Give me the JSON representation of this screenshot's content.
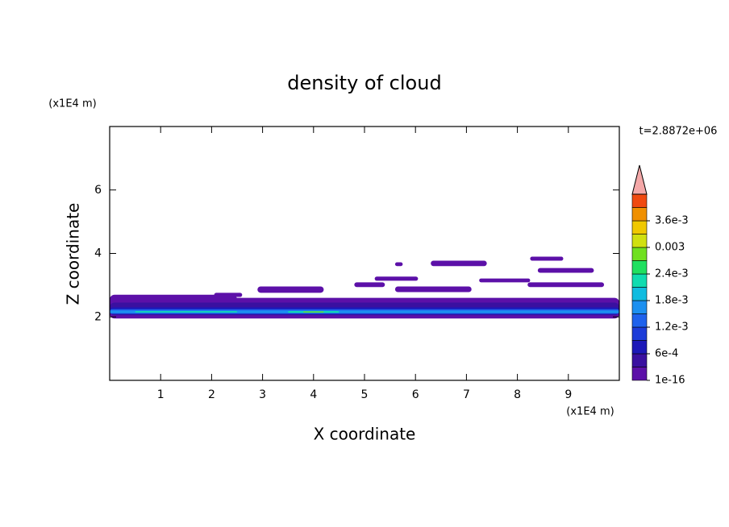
{
  "chart_data": {
    "type": "contour",
    "title": "density of cloud",
    "xlabel": "X coordinate",
    "ylabel": "Z coordinate",
    "xunit": "(x1E4 m)",
    "yunit": "(x1E4 m)",
    "time_label": "t=2.8872e+06",
    "xlim": [
      0,
      10
    ],
    "ylim": [
      0,
      8
    ],
    "xticks": [
      1,
      2,
      3,
      4,
      5,
      6,
      7,
      8,
      9
    ],
    "yticks": [
      2,
      4,
      6
    ],
    "colorbar": {
      "levels": [
        0,
        0.0003,
        0.0006,
        0.0009,
        0.0012,
        0.0015,
        0.0018,
        0.0021,
        0.0024,
        0.0027,
        0.003,
        0.0033,
        0.0036,
        0.0039,
        0.0042
      ],
      "colors": [
        "#5c10a8",
        "#3a10a0",
        "#1c18b8",
        "#1c3cd8",
        "#1e62ec",
        "#1c90f0",
        "#10bce0",
        "#10dcb0",
        "#20e060",
        "#70e020",
        "#d0e010",
        "#f0c800",
        "#f09000",
        "#f04a10"
      ],
      "over_color": "#f4a8a8",
      "ticks": [
        {
          "value": 1e-16,
          "label": "1e-16"
        },
        {
          "value": 0.0006,
          "label": "6e-4"
        },
        {
          "value": 0.0012,
          "label": "1.2e-3"
        },
        {
          "value": 0.0018,
          "label": "1.8e-3"
        },
        {
          "value": 0.0024,
          "label": "2.4e-3"
        },
        0.003,
        {
          "value": 0.0036,
          "label": "3.6e-3"
        }
      ]
    },
    "regions": [
      {
        "x": [
          0,
          10
        ],
        "z": [
          1.95,
          2.6
        ],
        "value": 0.0001
      },
      {
        "x": [
          0,
          2.5
        ],
        "z": [
          2.33,
          2.7
        ],
        "value": 0.0001
      },
      {
        "x": [
          2.05,
          2.6
        ],
        "z": [
          2.63,
          2.76
        ],
        "value": 0.0001
      },
      {
        "x": [
          2.9,
          4.2
        ],
        "z": [
          2.76,
          2.96
        ],
        "value": 0.0001
      },
      {
        "x": [
          4.8,
          5.4
        ],
        "z": [
          2.94,
          3.09
        ],
        "value": 0.0001
      },
      {
        "x": [
          5.2,
          6.05
        ],
        "z": [
          3.14,
          3.27
        ],
        "value": 0.0001
      },
      {
        "x": [
          5.6,
          7.1
        ],
        "z": [
          2.78,
          2.96
        ],
        "value": 0.0001
      },
      {
        "x": [
          6.3,
          7.4
        ],
        "z": [
          3.6,
          3.77
        ],
        "value": 0.0001
      },
      {
        "x": [
          8.25,
          8.9
        ],
        "z": [
          3.77,
          3.9
        ],
        "value": 0.0001
      },
      {
        "x": [
          8.4,
          9.5
        ],
        "z": [
          3.39,
          3.54
        ],
        "value": 0.0001
      },
      {
        "x": [
          8.2,
          9.7
        ],
        "z": [
          2.94,
          3.09
        ],
        "value": 0.0001
      },
      {
        "x": [
          7.25,
          8.25
        ],
        "z": [
          3.09,
          3.21
        ],
        "value": 0.0001
      },
      {
        "x": [
          5.6,
          5.75
        ],
        "z": [
          3.6,
          3.72
        ],
        "value": 0.0001
      },
      {
        "x": [
          0,
          10
        ],
        "z": [
          2.05,
          2.45
        ],
        "value": 0.0004
      },
      {
        "x": [
          0,
          10
        ],
        "z": [
          2.08,
          2.3
        ],
        "value": 0.0008
      },
      {
        "x": [
          0,
          10
        ],
        "z": [
          2.1,
          2.24
        ],
        "value": 0.0013
      },
      {
        "x": [
          0,
          10
        ],
        "z": [
          2.12,
          2.2
        ],
        "value": 0.0016
      },
      {
        "x": [
          0.5,
          2.5
        ],
        "z": [
          2.14,
          2.18
        ],
        "value": 0.0021
      },
      {
        "x": [
          3.5,
          4.5
        ],
        "z": [
          2.13,
          2.18
        ],
        "value": 0.0022
      },
      {
        "x": [
          3.8,
          4.2
        ],
        "z": [
          2.14,
          2.17
        ],
        "value": 0.0027
      }
    ]
  }
}
